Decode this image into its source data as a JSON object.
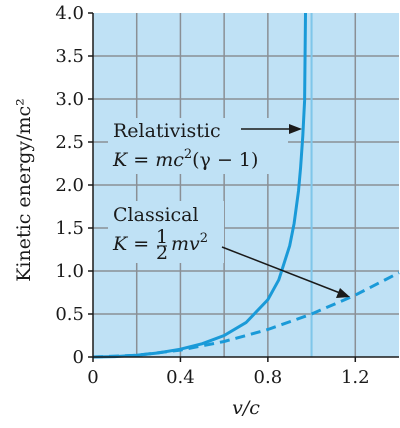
{
  "chart_data": {
    "type": "line",
    "xlabel": "v/c",
    "ylabel": "Kinetic energy/mc²",
    "xlim": [
      0,
      1.4
    ],
    "ylim": [
      0,
      4.0
    ],
    "x_ticks": [
      "0",
      "0.4",
      "0.8",
      "1.2"
    ],
    "y_ticks": [
      "0",
      "0.5",
      "1.0",
      "1.5",
      "2.0",
      "2.5",
      "3.0",
      "3.5",
      "4.0"
    ],
    "grid": true,
    "series": [
      {
        "name": "Relativistic",
        "style": "solid",
        "formula": "K = mc²(γ − 1)",
        "x": [
          0,
          0.1,
          0.2,
          0.3,
          0.4,
          0.5,
          0.6,
          0.7,
          0.8,
          0.85,
          0.9,
          0.92,
          0.94,
          0.95,
          0.96,
          0.968
        ],
        "y": [
          0,
          0.005,
          0.021,
          0.048,
          0.091,
          0.155,
          0.25,
          0.4,
          0.667,
          0.898,
          1.294,
          1.552,
          1.931,
          2.203,
          2.571,
          2.98
        ]
      },
      {
        "name": "Classical",
        "style": "dashed",
        "formula": "K = ½mv²",
        "x": [
          0,
          0.2,
          0.4,
          0.6,
          0.8,
          1.0,
          1.2,
          1.4
        ],
        "y": [
          0,
          0.02,
          0.08,
          0.18,
          0.32,
          0.5,
          0.72,
          0.98
        ]
      }
    ],
    "reference_line_x": 1.0
  },
  "annotations": {
    "relativistic_label": "Relativistic",
    "relativistic_formula_prefix": "K = mc",
    "relativistic_formula_sup": "2",
    "relativistic_formula_suffix": "(γ − 1)",
    "classical_label": "Classical",
    "classical_formula_prefix": "K = ",
    "classical_formula_num": "1",
    "classical_formula_den": "2",
    "classical_formula_suffix": "mv",
    "classical_formula_sup": "2"
  },
  "colors": {
    "plot_bg": "#bfe1f5",
    "grid": "#8a8f95",
    "curve": "#1a9ad8",
    "reference_line": "#7fc6ea",
    "axis": "#1a1a1a"
  }
}
